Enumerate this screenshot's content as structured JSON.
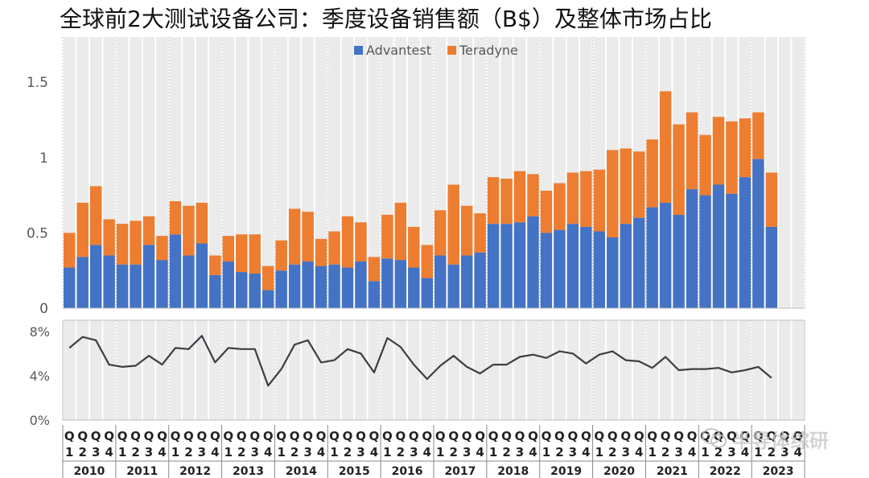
{
  "title": "全球前2大测试设备公司：季度设备销售额（B$）及整体市场占比",
  "watermark": "半导体综研",
  "colors": {
    "advantest": "#4472C4",
    "teradyne": "#ED7D31",
    "line": "#3a3f45",
    "shade": "#ebebeb",
    "grid": "#d0d0d0",
    "axis_text": "#595959"
  },
  "chart_data": [
    {
      "type": "bar",
      "stacked": true,
      "title": "全球前2大测试设备公司：季度设备销售额（B$）及整体市场占比",
      "legend_position": "top-center",
      "ylim": [
        0,
        1.8
      ],
      "yticks": [
        0,
        0.5,
        1,
        1.5
      ],
      "ytick_labels": [
        "0",
        "0.5",
        "1",
        "1.5"
      ],
      "quarters": [
        "1",
        "2",
        "3",
        "4"
      ],
      "years": [
        "2010",
        "2011",
        "2012",
        "2013",
        "2014",
        "2015",
        "2016",
        "2017",
        "2018",
        "2019",
        "2020",
        "2021",
        "2022",
        "2023"
      ],
      "series": [
        {
          "name": "Advantest",
          "values": [
            0.27,
            0.34,
            0.42,
            0.35,
            0.29,
            0.29,
            0.42,
            0.32,
            0.49,
            0.35,
            0.43,
            0.22,
            0.31,
            0.24,
            0.23,
            0.12,
            0.25,
            0.29,
            0.31,
            0.28,
            0.29,
            0.27,
            0.31,
            0.18,
            0.33,
            0.32,
            0.27,
            0.2,
            0.35,
            0.29,
            0.35,
            0.37,
            0.56,
            0.56,
            0.57,
            0.61,
            0.5,
            0.52,
            0.56,
            0.54,
            0.51,
            0.47,
            0.56,
            0.6,
            0.67,
            0.7,
            0.62,
            0.79,
            0.75,
            0.82,
            0.76,
            0.87,
            0.99,
            0.54
          ]
        },
        {
          "name": "Teradyne",
          "values": [
            0.23,
            0.36,
            0.39,
            0.24,
            0.27,
            0.29,
            0.19,
            0.16,
            0.22,
            0.33,
            0.27,
            0.13,
            0.17,
            0.25,
            0.26,
            0.16,
            0.2,
            0.37,
            0.33,
            0.18,
            0.22,
            0.34,
            0.26,
            0.16,
            0.29,
            0.38,
            0.27,
            0.22,
            0.3,
            0.53,
            0.33,
            0.26,
            0.31,
            0.3,
            0.34,
            0.28,
            0.28,
            0.31,
            0.34,
            0.37,
            0.41,
            0.58,
            0.5,
            0.44,
            0.45,
            0.74,
            0.6,
            0.51,
            0.4,
            0.45,
            0.48,
            0.39,
            0.31,
            0.36
          ]
        }
      ]
    },
    {
      "type": "line",
      "ylabel": "整体市场占比",
      "ylim": [
        0,
        9
      ],
      "yticks": [
        0,
        4,
        8
      ],
      "ytick_labels": [
        "0%",
        "4%",
        "8%"
      ],
      "series": [
        {
          "name": "市场占比",
          "values": [
            6.5,
            7.5,
            7.2,
            5.0,
            4.8,
            4.9,
            5.8,
            5.0,
            6.5,
            6.4,
            7.6,
            5.2,
            6.5,
            6.4,
            6.4,
            3.1,
            4.6,
            6.8,
            7.2,
            5.2,
            5.4,
            6.4,
            6.0,
            4.3,
            7.4,
            6.6,
            5.0,
            3.7,
            4.9,
            5.8,
            4.8,
            4.2,
            5.0,
            5.0,
            5.7,
            5.9,
            5.6,
            6.2,
            6.0,
            5.1,
            5.9,
            6.2,
            5.4,
            5.3,
            4.7,
            5.7,
            4.5,
            4.6,
            4.6,
            4.7,
            4.3,
            4.5,
            4.8,
            3.8
          ]
        }
      ]
    }
  ]
}
